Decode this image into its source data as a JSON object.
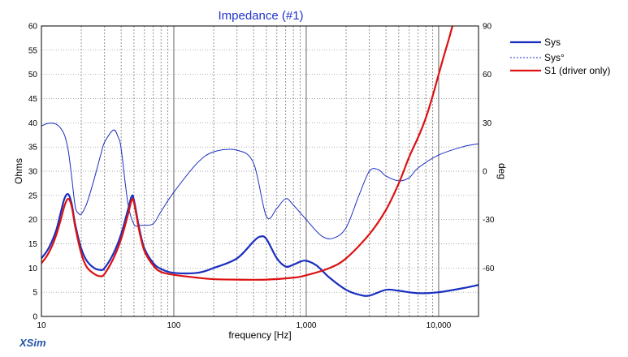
{
  "chart_data": {
    "type": "line",
    "title": "Impedance (#1)",
    "xlabel": "frequency [Hz]",
    "ylabel": "Ohms",
    "y2label": "deg",
    "x_scale": "log",
    "xlim": [
      10,
      20000
    ],
    "ylim": [
      0,
      60
    ],
    "y2lim": [
      -90,
      90
    ],
    "grid": true,
    "legend_position": "right",
    "x_tick_labels": [
      {
        "value": 10,
        "label": "10"
      },
      {
        "value": 100,
        "label": "100"
      },
      {
        "value": 1000,
        "label": "1,000"
      },
      {
        "value": 10000,
        "label": "10,000"
      }
    ],
    "y_ticks": [
      0,
      5,
      10,
      15,
      20,
      25,
      30,
      35,
      40,
      45,
      50,
      55,
      60
    ],
    "y2_ticks": [
      90,
      60,
      30,
      0,
      -30,
      -60
    ],
    "colors": {
      "sys": "#1a2fbf",
      "driver": "#dd1111",
      "title": "#2233cc"
    },
    "series": [
      {
        "name": "Sys",
        "axis": "left",
        "style": "solid-thick",
        "color": "#1a2fbf",
        "x": [
          10,
          11,
          12,
          13,
          14,
          15,
          16,
          17,
          18,
          20,
          22,
          25,
          28,
          30,
          35,
          40,
          45,
          48,
          50,
          55,
          60,
          70,
          80,
          100,
          150,
          200,
          300,
          400,
          450,
          500,
          600,
          700,
          800,
          900,
          1000,
          1200,
          1500,
          2000,
          2500,
          3000,
          4000,
          5000,
          7000,
          10000,
          15000,
          20000
        ],
        "y": [
          12,
          13.5,
          15.5,
          18,
          21.5,
          24.5,
          25.2,
          23,
          19,
          14,
          11.5,
          10,
          9.6,
          10,
          13,
          17,
          22,
          24.8,
          24,
          18,
          14,
          11,
          9.8,
          9,
          9,
          10,
          12,
          15.5,
          16.5,
          16,
          12,
          10.3,
          10.7,
          11.3,
          11.5,
          10.5,
          8,
          5.5,
          4.5,
          4.3,
          5.5,
          5.3,
          4.8,
          5,
          5.8,
          6.5
        ]
      },
      {
        "name": "Sys°",
        "axis": "right",
        "style": "dashed-thin",
        "color": "#1a2fbf",
        "x": [
          10,
          11,
          12,
          13,
          14,
          15,
          16,
          17,
          18,
          19,
          20,
          22,
          25,
          28,
          30,
          35,
          38,
          40,
          45,
          50,
          55,
          60,
          70,
          80,
          100,
          150,
          200,
          300,
          400,
          500,
          600,
          700,
          800,
          1000,
          1300,
          1600,
          2000,
          2500,
          3000,
          3500,
          4000,
          5000,
          6000,
          7000,
          10000,
          15000,
          20000
        ],
        "y": [
          28,
          29.5,
          29.7,
          29,
          26.5,
          22,
          12,
          -5,
          -22,
          -26,
          -26.5,
          -20,
          -5,
          10,
          18,
          25.5,
          21,
          14,
          -20,
          -33,
          -33.5,
          -33.5,
          -32.5,
          -25,
          -13,
          5,
          12,
          13,
          5,
          -28,
          -23,
          -17,
          -21,
          -30,
          -40,
          -41.5,
          -35,
          -15,
          0,
          1,
          -3,
          -6,
          -4,
          2,
          10,
          15,
          17
        ]
      },
      {
        "name": "S1 (driver only)",
        "axis": "left",
        "style": "solid-thick",
        "color": "#dd1111",
        "x": [
          10,
          11,
          12,
          13,
          14,
          15,
          16,
          17,
          18,
          20,
          22,
          25,
          28,
          30,
          35,
          40,
          45,
          48,
          50,
          55,
          60,
          70,
          80,
          100,
          150,
          200,
          300,
          500,
          800,
          1000,
          1500,
          2000,
          3000,
          4000,
          5000,
          6000,
          7000,
          8000,
          9000,
          10000,
          11000,
          12000,
          13000
        ],
        "y": [
          11,
          12.5,
          14.5,
          17,
          20,
          23,
          24.3,
          22.5,
          18.5,
          13,
          10.2,
          8.8,
          8.3,
          8.8,
          12,
          16,
          21,
          24,
          23.5,
          17.5,
          13.5,
          10.5,
          9.2,
          8.6,
          8,
          7.7,
          7.6,
          7.6,
          8,
          8.5,
          10,
          12,
          17,
          22,
          27.5,
          33,
          37,
          41,
          45.5,
          50,
          54,
          57.5,
          61
        ]
      }
    ],
    "annotations": [
      "XSim"
    ]
  }
}
